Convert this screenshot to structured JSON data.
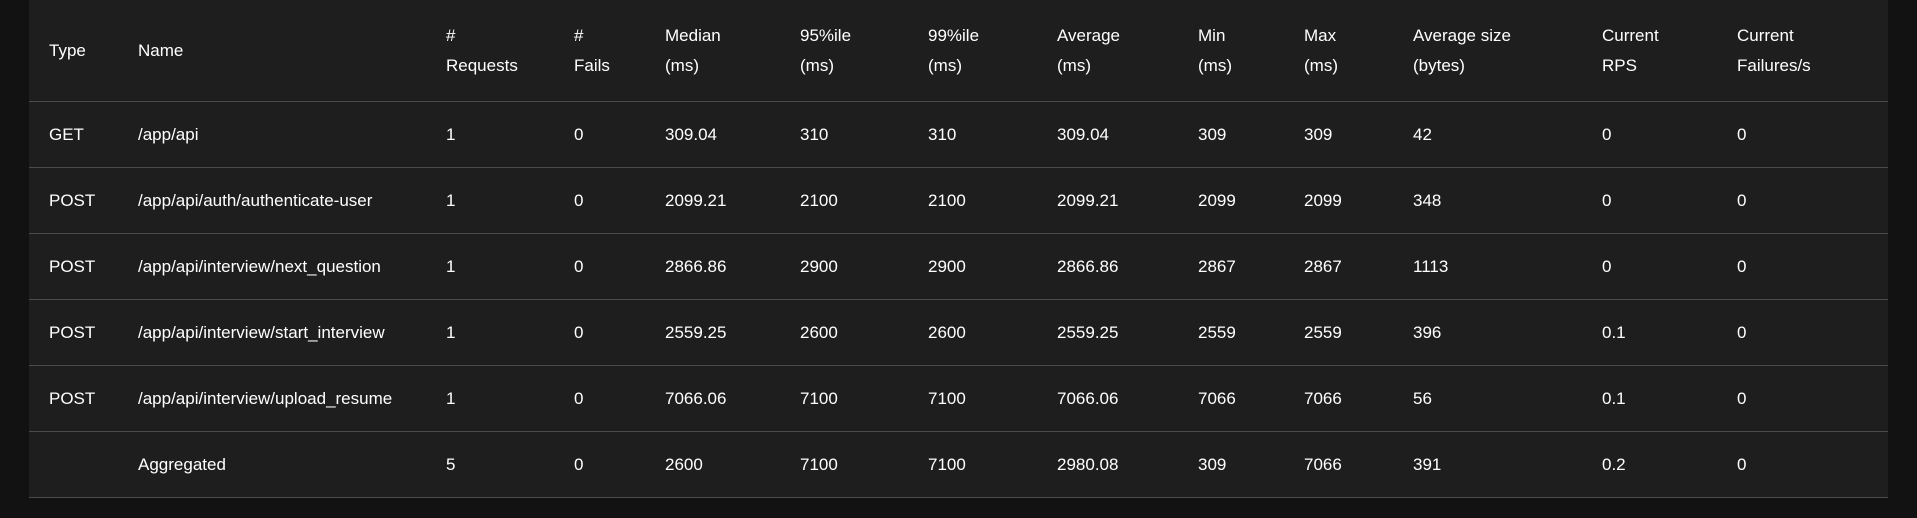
{
  "stats_table": {
    "headers": [
      {
        "line1": "Type",
        "line2": ""
      },
      {
        "line1": "Name",
        "line2": ""
      },
      {
        "line1": "#",
        "line2": "Requests"
      },
      {
        "line1": "#",
        "line2": "Fails"
      },
      {
        "line1": "Median",
        "line2": "(ms)"
      },
      {
        "line1": "95%ile",
        "line2": "(ms)"
      },
      {
        "line1": "99%ile",
        "line2": "(ms)"
      },
      {
        "line1": "Average",
        "line2": "(ms)"
      },
      {
        "line1": "Min",
        "line2": "(ms)"
      },
      {
        "line1": "Max",
        "line2": "(ms)"
      },
      {
        "line1": "Average size",
        "line2": "(bytes)"
      },
      {
        "line1": "Current",
        "line2": "RPS"
      },
      {
        "line1": "Current",
        "line2": "Failures/s"
      }
    ],
    "rows": [
      [
        "GET",
        "/app/api",
        "1",
        "0",
        "309.04",
        "310",
        "310",
        "309.04",
        "309",
        "309",
        "42",
        "0",
        "0"
      ],
      [
        "POST",
        "/app/api/auth/authenticate-user",
        "1",
        "0",
        "2099.21",
        "2100",
        "2100",
        "2099.21",
        "2099",
        "2099",
        "348",
        "0",
        "0"
      ],
      [
        "POST",
        "/app/api/interview/next_question",
        "1",
        "0",
        "2866.86",
        "2900",
        "2900",
        "2866.86",
        "2867",
        "2867",
        "1113",
        "0",
        "0"
      ],
      [
        "POST",
        "/app/api/interview/start_interview",
        "1",
        "0",
        "2559.25",
        "2600",
        "2600",
        "2559.25",
        "2559",
        "2559",
        "396",
        "0.1",
        "0"
      ],
      [
        "POST",
        "/app/api/interview/upload_resume",
        "1",
        "0",
        "7066.06",
        "7100",
        "7100",
        "7066.06",
        "7066",
        "7066",
        "56",
        "0.1",
        "0"
      ],
      [
        "",
        "Aggregated",
        "5",
        "0",
        "2600",
        "7100",
        "7100",
        "2980.08",
        "309",
        "7066",
        "391",
        "0.2",
        "0"
      ]
    ]
  }
}
